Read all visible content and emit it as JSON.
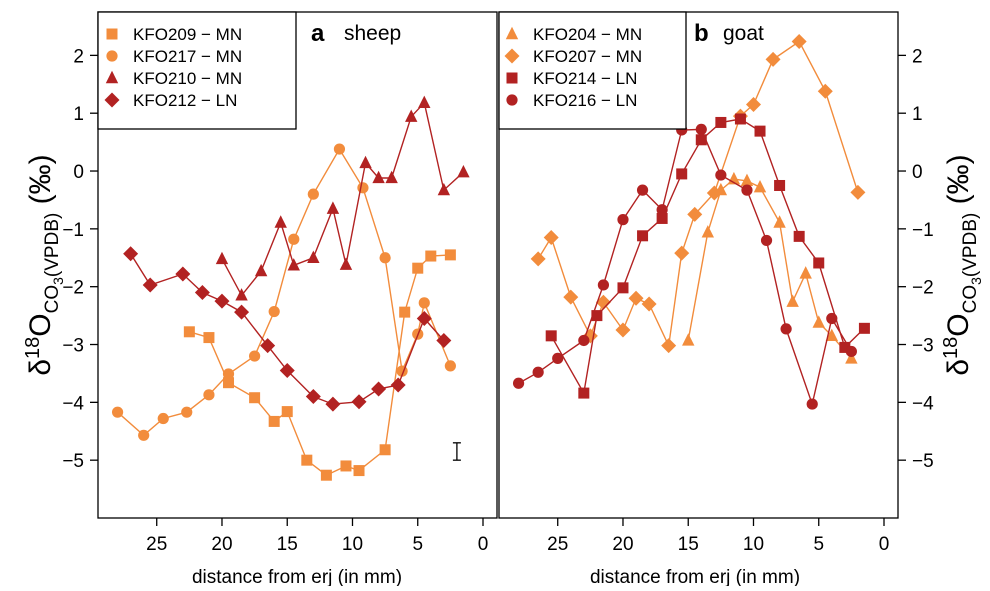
{
  "chart_data": [
    {
      "type": "line",
      "panel_label": "a",
      "panel_title": "sheep",
      "xlabel": "distance from erj (in mm)",
      "ylabel": "δ18OCO3(VPDB) (‰)",
      "xlim": [
        29.5,
        0
      ],
      "ylim": [
        -6,
        2.75
      ],
      "xticks": [
        25,
        20,
        15,
        10,
        5,
        0
      ],
      "yticks": [
        -5,
        -4,
        -3,
        -2,
        -1,
        0,
        1,
        2
      ],
      "yaxis": "left",
      "grid": false,
      "legend_position": "top-left",
      "error_bar": {
        "x": 2,
        "y": -4.85,
        "half_range": 0.15
      },
      "series": [
        {
          "name": "KFO209 − MN",
          "marker": "square",
          "color": "#f28c3c",
          "x": [
            22.5,
            21,
            19.5,
            17.5,
            16,
            15,
            13.5,
            12,
            10.5,
            9.5,
            7.5,
            6,
            5,
            4,
            2.5
          ],
          "y": [
            -2.78,
            -2.88,
            -3.66,
            -3.92,
            -4.33,
            -4.16,
            -5.0,
            -5.26,
            -5.1,
            -5.18,
            -4.82,
            -2.44,
            -1.68,
            -1.47,
            -1.45
          ]
        },
        {
          "name": "KFO217 − MN",
          "marker": "circle",
          "color": "#f28c3c",
          "x": [
            28,
            26,
            24.5,
            22.7,
            21,
            19.5,
            17.5,
            16,
            14.5,
            13,
            11,
            9.2,
            7.5,
            6.2,
            5,
            4.5,
            2.5
          ],
          "y": [
            -4.17,
            -4.57,
            -4.28,
            -4.17,
            -3.87,
            -3.51,
            -3.2,
            -2.43,
            -1.18,
            -0.4,
            0.38,
            -0.29,
            -1.5,
            -3.46,
            -2.82,
            -2.28,
            -3.37
          ]
        },
        {
          "name": "KFO210 − MN",
          "marker": "triangle",
          "color": "#b22222",
          "x": [
            20,
            18.5,
            17,
            15.5,
            14.5,
            13,
            11.5,
            10.5,
            9,
            8,
            7,
            5.5,
            4.5,
            3,
            1.5
          ],
          "y": [
            -1.52,
            -2.15,
            -1.73,
            -0.89,
            -1.63,
            -1.5,
            -0.65,
            -1.62,
            0.14,
            -0.12,
            -0.12,
            0.94,
            1.18,
            -0.33,
            -0.02
          ]
        },
        {
          "name": "KFO212 − LN",
          "marker": "diamond",
          "color": "#b22222",
          "x": [
            27,
            25.5,
            23,
            21.5,
            20,
            18.5,
            16.5,
            15,
            13,
            11.5,
            9.5,
            8,
            6.5,
            4.5,
            3
          ],
          "y": [
            -1.43,
            -1.97,
            -1.78,
            -2.1,
            -2.25,
            -2.44,
            -3.02,
            -3.45,
            -3.9,
            -4.03,
            -3.99,
            -3.77,
            -3.7,
            -2.55,
            -2.93
          ]
        }
      ]
    },
    {
      "type": "line",
      "panel_label": "b",
      "panel_title": "goat",
      "xlabel": "distance from erj (in mm)",
      "ylabel": "δ18OCO3(VPDB) (‰)",
      "xlim": [
        29.5,
        0
      ],
      "ylim": [
        -6,
        2.75
      ],
      "xticks": [
        25,
        20,
        15,
        10,
        5,
        0
      ],
      "yticks": [
        -5,
        -4,
        -3,
        -2,
        -1,
        0,
        1,
        2
      ],
      "yaxis": "right",
      "grid": false,
      "legend_position": "top-left",
      "series": [
        {
          "name": "KFO204 − MN",
          "marker": "triangle",
          "color": "#f28c3c",
          "x": [
            15,
            13.5,
            12.5,
            11.5,
            10.5,
            9.5,
            8,
            7,
            6,
            5,
            4,
            2.5
          ],
          "y": [
            -2.93,
            -1.06,
            -0.33,
            -0.14,
            -0.17,
            -0.28,
            -0.89,
            -2.26,
            -1.77,
            -2.62,
            -2.85,
            -3.24
          ]
        },
        {
          "name": "KFO207 − MN",
          "marker": "diamond",
          "color": "#f28c3c",
          "x": [
            26.5,
            25.5,
            24,
            22.5,
            21.5,
            20,
            19,
            18,
            16.5,
            15.5,
            14.5,
            13,
            11,
            10,
            8.5,
            6.5,
            4.5,
            2
          ],
          "y": [
            -1.52,
            -1.15,
            -2.18,
            -2.85,
            -2.27,
            -2.75,
            -2.2,
            -2.3,
            -3.02,
            -1.42,
            -0.75,
            -0.38,
            0.95,
            1.15,
            1.93,
            2.24,
            1.38,
            -0.37
          ]
        },
        {
          "name": "KFO214 − LN",
          "marker": "square",
          "color": "#b22222",
          "x": [
            25.5,
            23,
            22,
            20,
            18.5,
            17,
            15.5,
            14,
            12.5,
            11,
            9.5,
            8,
            6.5,
            5,
            3,
            1.5
          ],
          "y": [
            -2.85,
            -3.84,
            -2.5,
            -2.02,
            -1.12,
            -0.82,
            -0.05,
            0.54,
            0.84,
            0.9,
            0.69,
            -0.25,
            -1.13,
            -1.59,
            -3.05,
            -2.72
          ]
        },
        {
          "name": "KFO216 − LN",
          "marker": "circle",
          "color": "#b22222",
          "x": [
            28,
            26.5,
            25,
            23,
            21.5,
            20,
            18.5,
            17,
            15.5,
            14,
            12.5,
            10.5,
            9,
            7.5,
            5.5,
            4,
            2.5
          ],
          "y": [
            -3.67,
            -3.48,
            -3.24,
            -2.93,
            -1.97,
            -0.84,
            -0.33,
            -0.67,
            0.71,
            0.72,
            -0.07,
            -0.33,
            -1.2,
            -2.73,
            -4.03,
            -2.55,
            -3.12
          ]
        }
      ]
    }
  ]
}
